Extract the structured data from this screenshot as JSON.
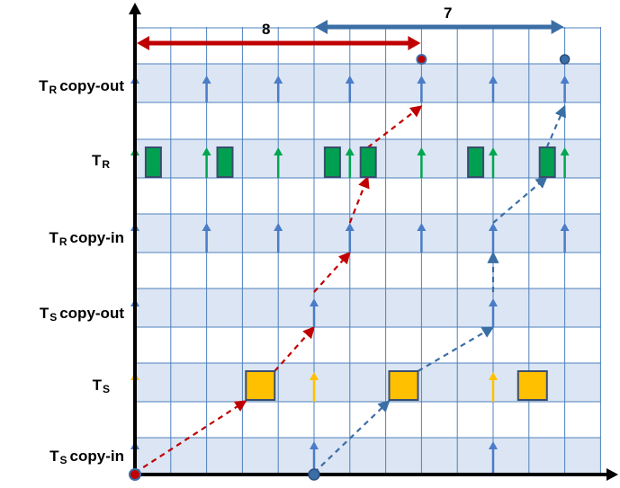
{
  "rows": [
    {
      "main": "T",
      "sub": "R",
      "suffix": "copy-out"
    },
    {
      "main": "T",
      "sub": "R",
      "suffix": ""
    },
    {
      "main": "T",
      "sub": "R",
      "suffix": "copy-in"
    },
    {
      "main": "T",
      "sub": "S",
      "suffix": "copy-out"
    },
    {
      "main": "T",
      "sub": "S",
      "suffix": ""
    },
    {
      "main": "T",
      "sub": "S",
      "suffix": "copy-in"
    }
  ],
  "spans": {
    "red_label": "8",
    "blue_label": "7"
  },
  "colors": {
    "band": "#dbe5f3",
    "grid": "#4f81bd",
    "blue_arrow": "#4a7cc7",
    "green_arrow": "#00a650",
    "yellow_arrow": "#ffc000",
    "green_box": "#00a050",
    "yellow_box": "#ffc000",
    "box_border": "#3a4e6e",
    "red_path": "#c00000",
    "blue_path": "#3a6ea5",
    "axis": "#000000"
  }
}
